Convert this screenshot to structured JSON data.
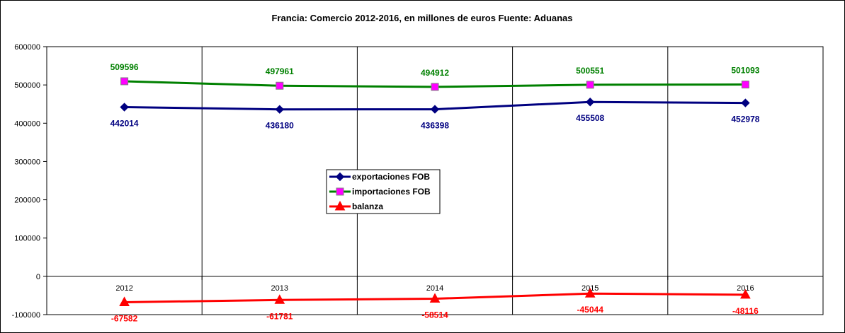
{
  "chart_data": {
    "type": "line",
    "title": "Francia: Comercio 2012-2016, en millones de euros Fuente: Aduanas",
    "xlabel": "",
    "ylabel": "",
    "categories": [
      "2012",
      "2013",
      "2014",
      "2015",
      "2016"
    ],
    "ylim": [
      -100000,
      600000
    ],
    "yticks": [
      600000,
      500000,
      400000,
      300000,
      200000,
      100000,
      0,
      -100000
    ],
    "grid": "vertical",
    "legend_position": "center",
    "series": [
      {
        "name": "exportaciones FOB",
        "values": [
          442014,
          436180,
          436398,
          455508,
          452978
        ],
        "color": "#000080",
        "marker": "diamond",
        "label_position": "below"
      },
      {
        "name": "importaciones FOB",
        "values": [
          509596,
          497961,
          494912,
          500551,
          501093
        ],
        "color": "#008000",
        "marker_color": "#ff00ff",
        "marker": "square",
        "label_position": "above"
      },
      {
        "name": "balanza",
        "values": [
          -67582,
          -61781,
          -58514,
          -45044,
          -48116
        ],
        "color": "#ff0000",
        "marker": "triangle",
        "label_position": "below"
      }
    ]
  }
}
